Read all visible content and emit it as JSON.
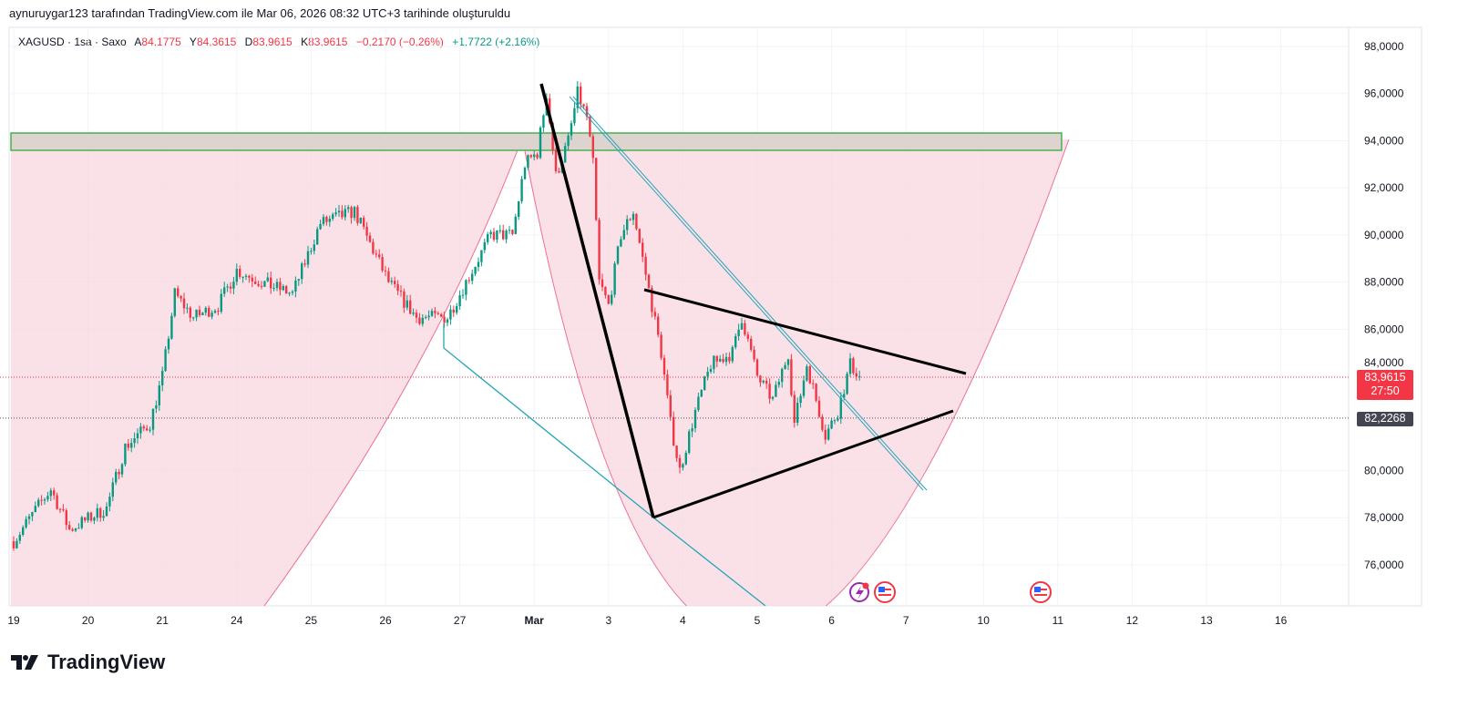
{
  "credit": "aynuruygar123 tarafından TradingView.com ile Mar 06, 2026 08:32 UTC+3 tarihinde oluşturuldu",
  "legend": {
    "symbol": "XAGUSD · 1sa · Saxo",
    "open_label": "A",
    "open": "84,1775",
    "high_label": "Y",
    "high": "84,3615",
    "low_label": "D",
    "low": "83,9615",
    "close_label": "K",
    "close": "83,9615",
    "change": "−0,2170 (−0,26%)",
    "change2": "+1,7722 (+2,16%)"
  },
  "price_tags": {
    "last_price": "83,9615",
    "countdown": "27:50",
    "line_price": "82,2268"
  },
  "brand": "TradingView",
  "colors": {
    "up": "#089981",
    "down": "#f23645",
    "fill": "#f8d7e0",
    "zone": "#e0d6d0",
    "zone_border": "#4caf50",
    "teal": "#26a6b8"
  },
  "chart_data": {
    "type": "candlestick",
    "title": "XAGUSD 1h",
    "y_ticks": [
      "98,0000",
      "96,0000",
      "94,0000",
      "92,0000",
      "90,0000",
      "88,0000",
      "86,0000",
      "84,0000",
      "80,0000",
      "78,0000",
      "76,0000"
    ],
    "y_tick_values": [
      98,
      96,
      94,
      92,
      90,
      88,
      86,
      84,
      80,
      78,
      76
    ],
    "ylim": [
      74.4,
      99
    ],
    "x_ticks": [
      "19",
      "20",
      "21",
      "24",
      "25",
      "26",
      "27",
      "Mar",
      "3",
      "4",
      "5",
      "6",
      "7",
      "10",
      "11",
      "12",
      "13",
      "16"
    ],
    "x_tick_bars": [
      0,
      24,
      48,
      72,
      96,
      120,
      144,
      168,
      192,
      216,
      240,
      264,
      288,
      313,
      337,
      361,
      385,
      409
    ],
    "close_path": [
      [
        0,
        77
      ],
      [
        8,
        78.5
      ],
      [
        12,
        79.2
      ],
      [
        18,
        77.5
      ],
      [
        30,
        78.4
      ],
      [
        36,
        81
      ],
      [
        44,
        82
      ],
      [
        48,
        84
      ],
      [
        52,
        87.5
      ],
      [
        58,
        86.5
      ],
      [
        66,
        87
      ],
      [
        72,
        88.5
      ],
      [
        80,
        88
      ],
      [
        90,
        87.5
      ],
      [
        99,
        90.5
      ],
      [
        110,
        91
      ],
      [
        121,
        88
      ],
      [
        130,
        86.5
      ],
      [
        140,
        86.5
      ],
      [
        146,
        88
      ],
      [
        154,
        90
      ],
      [
        161,
        90
      ],
      [
        165,
        93
      ],
      [
        169,
        93.5
      ],
      [
        172,
        96
      ],
      [
        175,
        92.5
      ],
      [
        179,
        94
      ],
      [
        182,
        96
      ],
      [
        185,
        95
      ],
      [
        187,
        93
      ],
      [
        189,
        88
      ],
      [
        192,
        87
      ],
      [
        196,
        90
      ],
      [
        200,
        91
      ],
      [
        203,
        89
      ],
      [
        206,
        87
      ],
      [
        209,
        85
      ],
      [
        212,
        82
      ],
      [
        215,
        80
      ],
      [
        220,
        82.5
      ],
      [
        225,
        84.5
      ],
      [
        232,
        85
      ],
      [
        235,
        86.5
      ],
      [
        240,
        84
      ],
      [
        245,
        83
      ],
      [
        250,
        85
      ],
      [
        252,
        82
      ],
      [
        256,
        84.5
      ],
      [
        262,
        81.5
      ],
      [
        266,
        82.5
      ],
      [
        270,
        84.5
      ],
      [
        273,
        84
      ]
    ],
    "last_price": 83.9615,
    "horizontal_line": 82.2268,
    "grid": true
  }
}
